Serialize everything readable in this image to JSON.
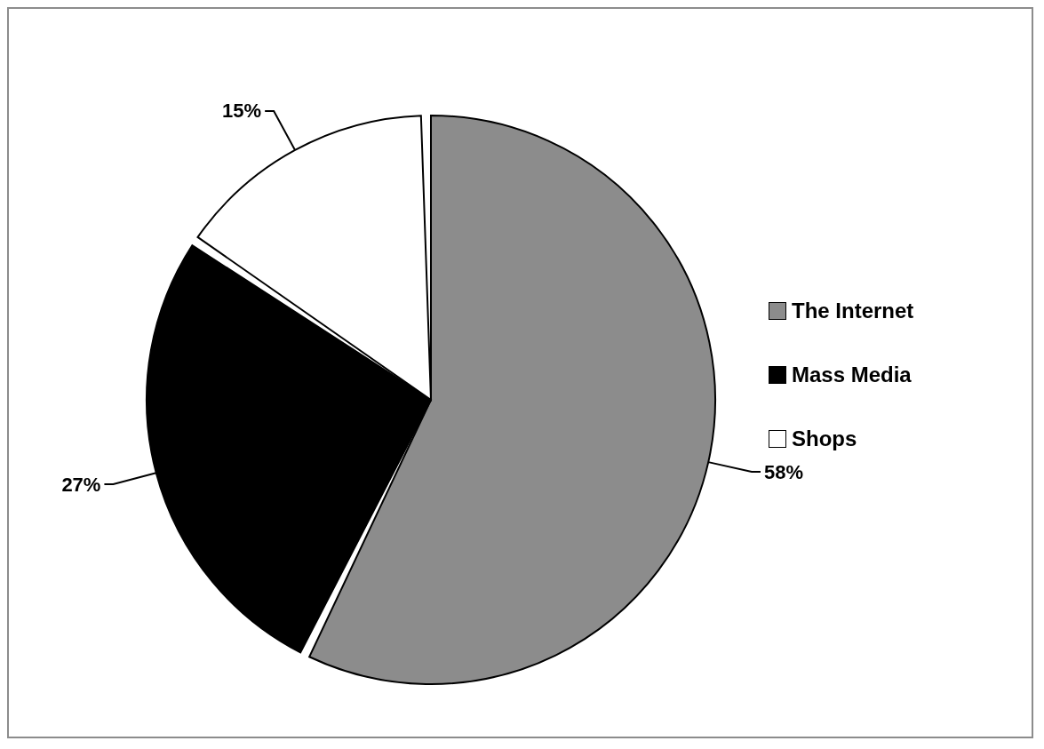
{
  "chart_data": {
    "type": "pie",
    "categories": [
      "The Internet",
      "Mass Media",
      "Shops"
    ],
    "values": [
      58,
      27,
      15
    ],
    "colors": [
      "#8c8c8c",
      "#000000",
      "#ffffff"
    ],
    "value_labels": [
      "58%",
      "27%",
      "15%"
    ],
    "legend": "right"
  }
}
